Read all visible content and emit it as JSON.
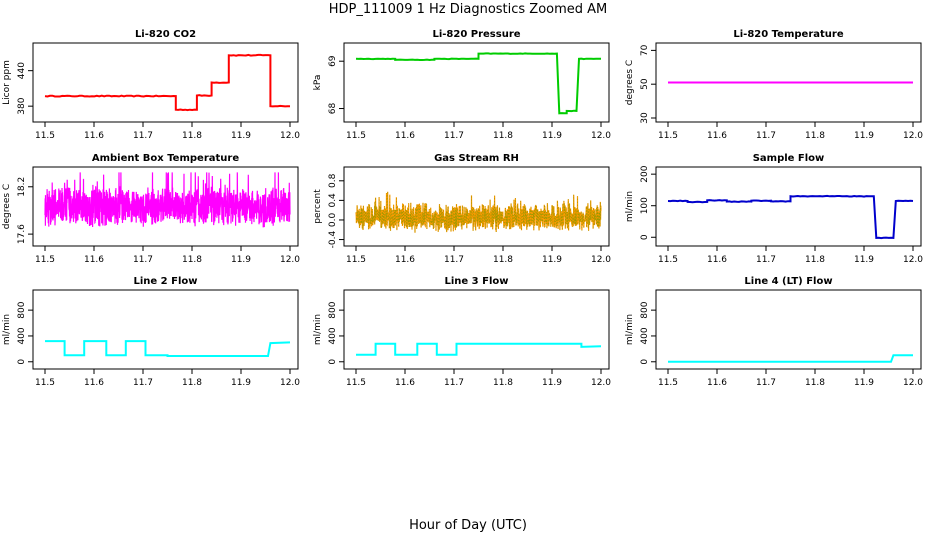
{
  "figure": {
    "title": "HDP_111009  1 Hz Diagnostics Zoomed AM",
    "xlabel": "Hour of Day (UTC)"
  },
  "chart_data": [
    {
      "type": "line",
      "title": "Li-820 CO2",
      "ylabel": "Licor ppm",
      "color": "#ff0000",
      "xlim": [
        11.5,
        12.0
      ],
      "ylim": [
        360,
        480
      ],
      "xticks": [
        "11.5",
        "11.6",
        "11.7",
        "11.8",
        "11.9",
        "12.0"
      ],
      "yticks": [
        380,
        440
      ],
      "noise": 1.5,
      "series": [
        {
          "x": [
            11.5,
            11.767,
            11.767,
            11.81,
            11.81,
            11.84,
            11.84,
            11.875,
            11.875,
            11.96,
            11.96,
            12.0
          ],
          "y": [
            397,
            397,
            374,
            374,
            398,
            398,
            420,
            420,
            466,
            466,
            380,
            380
          ]
        }
      ]
    },
    {
      "type": "line",
      "title": "Li-820 Pressure",
      "ylabel": "kPa",
      "color": "#00cc00",
      "xlim": [
        11.5,
        12.0
      ],
      "ylim": [
        67.8,
        69.3
      ],
      "xticks": [
        "11.5",
        "11.6",
        "11.7",
        "11.8",
        "11.9",
        "12.0"
      ],
      "yticks": [
        68.0,
        69.0
      ],
      "noise": 0.01,
      "series": [
        {
          "x": [
            11.5,
            11.58,
            11.58,
            11.66,
            11.66,
            11.75,
            11.75,
            11.91,
            11.915,
            11.93,
            11.93,
            11.95,
            11.955,
            12.0
          ],
          "y": [
            69.05,
            69.05,
            69.03,
            69.03,
            69.05,
            69.05,
            69.16,
            69.16,
            67.9,
            67.9,
            67.95,
            67.95,
            69.05,
            69.05
          ]
        }
      ]
    },
    {
      "type": "line",
      "title": "Li-820 Temperature",
      "ylabel": "degrees C",
      "color": "#ff00ff",
      "xlim": [
        11.5,
        12.0
      ],
      "ylim": [
        30,
        72
      ],
      "xticks": [
        "11.5",
        "11.6",
        "11.7",
        "11.8",
        "11.9",
        "12.0"
      ],
      "yticks": [
        30,
        50,
        70
      ],
      "noise": 0,
      "series": [
        {
          "x": [
            11.5,
            12.0
          ],
          "y": [
            51,
            51
          ]
        }
      ]
    },
    {
      "type": "line",
      "title": "Ambient Box Temperature",
      "ylabel": "degrees C",
      "color": "#ff00ff",
      "xlim": [
        11.5,
        12.0
      ],
      "ylim": [
        17.5,
        18.4
      ],
      "xticks": [
        "11.5",
        "11.6",
        "11.7",
        "11.8",
        "11.9",
        "12.0"
      ],
      "yticks": [
        17.6,
        18.2
      ],
      "noisy": true,
      "base": 17.95,
      "amp": 0.4,
      "series": []
    },
    {
      "type": "line",
      "title": "Gas Stream RH",
      "ylabel": "percent",
      "color": "#ff9900",
      "color2": "#999900",
      "xlim": [
        11.5,
        12.0
      ],
      "ylim": [
        -0.45,
        1.0
      ],
      "xticks": [
        "11.5",
        "11.6",
        "11.7",
        "11.8",
        "11.9",
        "12.0"
      ],
      "yticks": [
        -0.4,
        0.0,
        0.4,
        0.8
      ],
      "noisy": true,
      "base": 0.05,
      "amp": 0.45,
      "series": []
    },
    {
      "type": "line",
      "title": "Sample Flow",
      "ylabel": "ml/min",
      "color": "#0000cc",
      "xlim": [
        11.5,
        12.0
      ],
      "ylim": [
        -15,
        210
      ],
      "xticks": [
        "11.5",
        "11.6",
        "11.7",
        "11.8",
        "11.9",
        "12.0"
      ],
      "yticks": [
        0,
        100,
        200
      ],
      "noise": 2,
      "series": [
        {
          "x": [
            11.5,
            11.54,
            11.54,
            11.58,
            11.58,
            11.62,
            11.62,
            11.67,
            11.67,
            11.71,
            11.71,
            11.75,
            11.75,
            11.92,
            11.925,
            11.96,
            11.965,
            12.0
          ],
          "y": [
            115,
            115,
            112,
            112,
            117,
            117,
            113,
            113,
            116,
            116,
            114,
            114,
            130,
            130,
            -2,
            -2,
            115,
            115
          ]
        }
      ]
    },
    {
      "type": "line",
      "title": "Line 2 Flow",
      "ylabel": "ml/min",
      "color": "#00ffff",
      "xlim": [
        11.5,
        12.0
      ],
      "ylim": [
        -50,
        1050
      ],
      "xticks": [
        "11.5",
        "11.6",
        "11.7",
        "11.8",
        "11.9",
        "12.0"
      ],
      "yticks": [
        0,
        400,
        800
      ],
      "noise": 0,
      "series": [
        {
          "x": [
            11.5,
            11.54,
            11.54,
            11.58,
            11.58,
            11.625,
            11.625,
            11.665,
            11.665,
            11.705,
            11.705,
            11.75,
            11.75,
            11.955,
            11.96,
            12.0
          ],
          "y": [
            320,
            320,
            100,
            100,
            320,
            320,
            100,
            100,
            320,
            320,
            100,
            100,
            90,
            90,
            290,
            300
          ]
        }
      ]
    },
    {
      "type": "line",
      "title": "Line 3 Flow",
      "ylabel": "ml/min",
      "color": "#00ffff",
      "xlim": [
        11.5,
        12.0
      ],
      "ylim": [
        -50,
        1050
      ],
      "xticks": [
        "11.5",
        "11.6",
        "11.7",
        "11.8",
        "11.9",
        "12.0"
      ],
      "yticks": [
        0,
        400,
        800
      ],
      "noise": 0,
      "series": [
        {
          "x": [
            11.5,
            11.54,
            11.54,
            11.58,
            11.58,
            11.625,
            11.625,
            11.665,
            11.665,
            11.705,
            11.705,
            11.96,
            11.96,
            12.0
          ],
          "y": [
            110,
            110,
            280,
            280,
            110,
            110,
            280,
            280,
            110,
            110,
            280,
            280,
            230,
            240
          ]
        }
      ]
    },
    {
      "type": "line",
      "title": "Line 4 (LT) Flow",
      "ylabel": "ml/min",
      "color": "#00ffff",
      "xlim": [
        11.5,
        12.0
      ],
      "ylim": [
        -50,
        1050
      ],
      "xticks": [
        "11.5",
        "11.6",
        "11.7",
        "11.8",
        "11.9",
        "12.0"
      ],
      "yticks": [
        0,
        400,
        800
      ],
      "noise": 0,
      "series": [
        {
          "x": [
            11.5,
            11.955,
            11.96,
            12.0
          ],
          "y": [
            0,
            0,
            100,
            100
          ]
        }
      ]
    }
  ]
}
